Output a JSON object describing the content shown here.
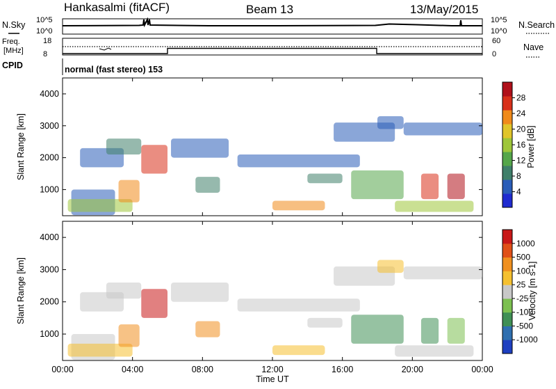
{
  "header": {
    "station": "Hankasalmi (fitACF)",
    "beam": "Beam 13",
    "date": "13/May/2015"
  },
  "status_panels": {
    "nsky_label": "N.Sky",
    "nsearch_label": "N.Search",
    "noise_ticks_left": [
      "10^5",
      "10^0"
    ],
    "noise_ticks_right": [
      "10^5",
      "10^0"
    ],
    "freq_label_line1": "Freq.",
    "freq_label_line2": "[MHz]",
    "freq_ticks": [
      "18",
      "8"
    ],
    "nave_ticks": [
      "60",
      "0"
    ],
    "nave_label": "Nave",
    "cpid_label": "CPID",
    "cpid_text": "normal (fast stereo) 153"
  },
  "chart_data": [
    {
      "type": "heatmap",
      "name": "power",
      "ylabel": "Slant Range [km]",
      "ylim": [
        180,
        4500
      ],
      "yticks": [
        "1000",
        "2000",
        "3000",
        "4000"
      ],
      "colorbar_label": "Power [dB]",
      "colorbar_ticks": [
        "28",
        "24",
        "20",
        "16",
        "12",
        "8",
        "4"
      ],
      "colorbar_colors": [
        "#1f2bd0",
        "#2a5db8",
        "#3f7f6a",
        "#55a64a",
        "#9ec63a",
        "#e0c52a",
        "#f08a1a",
        "#d8301a",
        "#b0101a"
      ]
    },
    {
      "type": "heatmap",
      "name": "velocity",
      "ylabel": "Slant Range [km]",
      "ylim": [
        180,
        4500
      ],
      "yticks": [
        "1000",
        "2000",
        "3000",
        "4000"
      ],
      "xlabel": "Time UT",
      "xticks": [
        "00:00",
        "04:00",
        "08:00",
        "12:00",
        "16:00",
        "20:00",
        "00:00"
      ],
      "colorbar_label": "Velocity [m s-1]",
      "colorbar_ticks": [
        "1000",
        "500",
        "100",
        "25",
        "-25",
        "-100",
        "-500",
        "-1000"
      ],
      "colorbar_colors": [
        "#1e3fc0",
        "#2f6fb0",
        "#3f8f55",
        "#7cc050",
        "#c8c8c8",
        "#f5c030",
        "#f09020",
        "#e05018",
        "#c81818"
      ]
    }
  ],
  "colors": {
    "echo_gray": "#c4c4c4",
    "echo_blue": "#2a4fb8"
  }
}
